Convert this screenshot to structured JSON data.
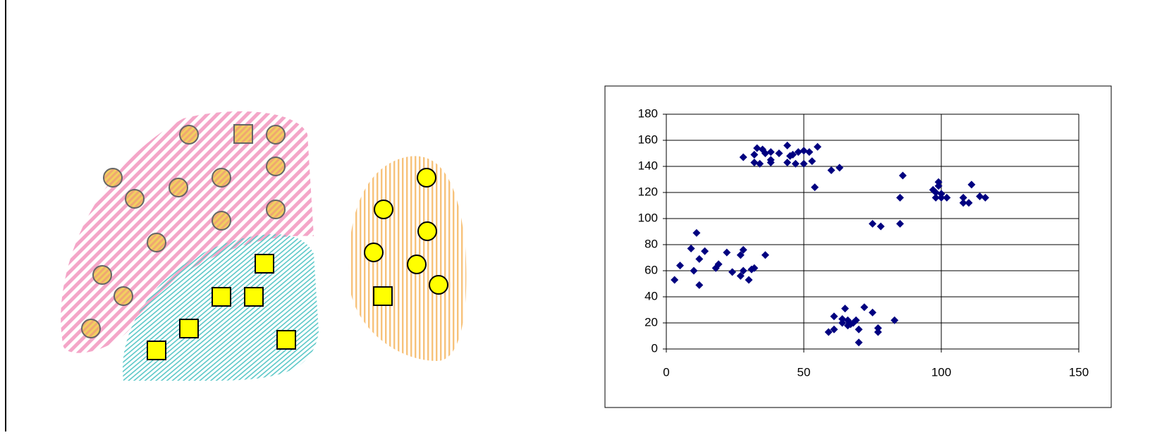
{
  "chart_data": {
    "type": "scatter",
    "color": "#000080",
    "grid": true,
    "xlim": [
      0,
      150
    ],
    "xticks": [
      0,
      50,
      100,
      150
    ],
    "ylim": [
      0,
      180
    ],
    "yticks": [
      0,
      20,
      40,
      60,
      80,
      100,
      120,
      140,
      160,
      180
    ],
    "x": [
      28,
      32,
      33,
      35,
      32,
      34,
      38,
      38,
      41,
      38,
      44,
      44,
      46,
      47,
      48,
      50,
      50,
      52,
      53,
      55,
      54,
      60,
      63,
      45,
      36,
      75,
      78,
      85,
      85,
      86,
      97,
      98,
      99,
      98,
      99,
      100,
      102,
      108,
      108,
      110,
      111,
      114,
      116,
      100,
      3,
      5,
      9,
      10,
      11,
      12,
      12,
      14,
      18,
      19,
      22,
      24,
      27,
      27,
      28,
      28,
      30,
      31,
      32,
      36,
      59,
      61,
      61,
      64,
      65,
      66,
      66,
      67,
      68,
      69,
      70,
      70,
      72,
      75,
      77,
      77,
      83,
      64
    ],
    "values": [
      147,
      149,
      154,
      153,
      143,
      142,
      151,
      143,
      150,
      145,
      156,
      143,
      149,
      142,
      151,
      152,
      142,
      151,
      144,
      155,
      124,
      137,
      139,
      148,
      150,
      96,
      94,
      96,
      116,
      133,
      122,
      120,
      125,
      116,
      128,
      119,
      116,
      116,
      112,
      112,
      126,
      117,
      116,
      116,
      53,
      64,
      77,
      60,
      89,
      49,
      69,
      75,
      62,
      65,
      74,
      59,
      56,
      72,
      76,
      60,
      53,
      61,
      62,
      72,
      13,
      15,
      25,
      20,
      31,
      18,
      22,
      19,
      20,
      22,
      15,
      5,
      32,
      28,
      13,
      16,
      22,
      23
    ]
  }
}
